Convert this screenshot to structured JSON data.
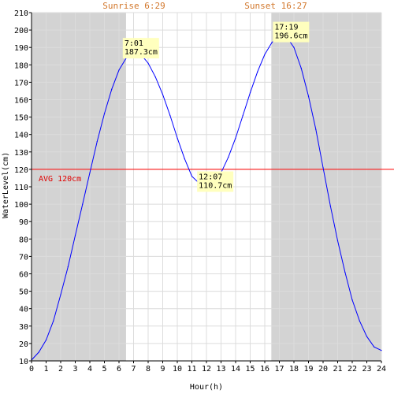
{
  "chart_data": {
    "type": "line",
    "xlabel": "Hour(h)",
    "ylabel": "WaterLevel(cm)",
    "xlim": [
      0,
      24
    ],
    "ylim": [
      10,
      210
    ],
    "x_ticks": [
      "0",
      "1",
      "2",
      "3",
      "4",
      "5",
      "6",
      "7",
      "8",
      "9",
      "10",
      "11",
      "12",
      "13",
      "14",
      "15",
      "16",
      "17",
      "18",
      "19",
      "20",
      "21",
      "22",
      "23",
      "24"
    ],
    "y_ticks": [
      "10",
      "20",
      "30",
      "40",
      "50",
      "60",
      "70",
      "80",
      "90",
      "100",
      "110",
      "120",
      "130",
      "140",
      "150",
      "160",
      "170",
      "180",
      "190",
      "200",
      "210"
    ],
    "grid": true,
    "night_shading": [
      {
        "from": 0,
        "to": 6.483
      },
      {
        "from": 16.45,
        "to": 24
      }
    ],
    "sunrise": {
      "label": "Sunrise 6:29",
      "hour": 6.483
    },
    "sunset": {
      "label": "Sunset 16:27",
      "hour": 16.45
    },
    "average": {
      "value": 120,
      "label": "AVG 120cm"
    },
    "series": [
      {
        "x": [
          0,
          0.5,
          1,
          1.5,
          2,
          2.5,
          3,
          3.5,
          4,
          4.5,
          5,
          5.5,
          6,
          6.5,
          7,
          7.017,
          7.5,
          8,
          8.5,
          9,
          9.5,
          10,
          10.5,
          11,
          11.5,
          12,
          12.117,
          12.5,
          13,
          13.5,
          14,
          14.5,
          15,
          15.5,
          16,
          16.5,
          17,
          17.317,
          17.5,
          18,
          18.5,
          19,
          19.5,
          20,
          20.5,
          21,
          21.5,
          22,
          22.5,
          23,
          23.5,
          24
        ],
        "y": [
          10.5,
          15,
          22,
          33,
          48,
          64,
          82,
          100,
          118,
          136,
          152,
          166,
          177,
          184,
          187,
          187.3,
          186,
          181,
          173,
          163,
          151,
          138,
          126,
          116,
          112,
          110.8,
          110.7,
          112,
          118,
          127,
          138,
          151,
          164,
          176,
          186,
          193,
          196,
          196.6,
          196,
          190,
          178,
          162,
          143,
          121,
          99,
          79,
          61,
          45,
          33,
          24,
          18,
          16
        ]
      }
    ],
    "annotations": [
      {
        "time": "7:01",
        "value": "187.3cm",
        "hour": 7.017,
        "level": 187.3
      },
      {
        "time": "12:07",
        "value": "110.7cm",
        "hour": 12.117,
        "level": 110.7
      },
      {
        "time": "17:19",
        "value": "196.6cm",
        "hour": 17.317,
        "level": 196.6
      }
    ],
    "colors": {
      "line": "#0000ff",
      "average": "#ff0000",
      "night": "#d3d3d3",
      "grid": "#dcdcdc",
      "annotation_bg": "#ffffbe",
      "sun_label": "#d2772b"
    }
  }
}
